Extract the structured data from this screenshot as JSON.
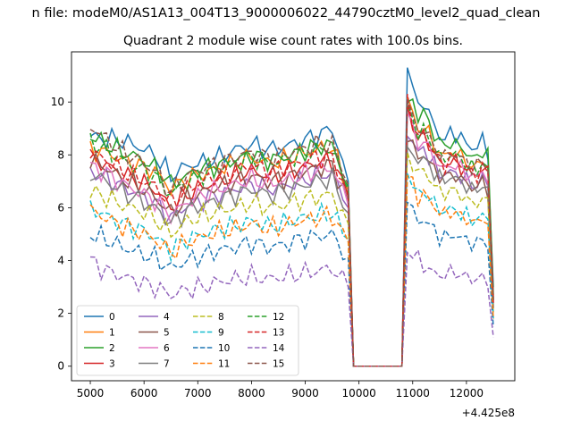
{
  "chart_data": {
    "type": "line",
    "suptitle": "n file: modeM0/AS1A13_004T13_9000006022_44790cztM0_level2_quad_clean",
    "title": "Quadrant 2 module wise count rates with 100.0s bins.",
    "xlabel": "",
    "ylabel": "",
    "x_offset_label": "+4.425e8",
    "xlim": [
      4650,
      12900
    ],
    "ylim": [
      -0.55,
      11.9
    ],
    "xticks": [
      5000,
      6000,
      7000,
      8000,
      9000,
      10000,
      11000,
      12000
    ],
    "yticks": [
      0,
      2,
      4,
      6,
      8,
      10
    ],
    "x_start": 5000,
    "x_step": 100,
    "x_end": 12500,
    "gap": {
      "last_high": 9800,
      "first_zero": 9900,
      "last_zero": 10800
    },
    "legend": {
      "placement": "lower-left",
      "columns": 4
    },
    "series": [
      {
        "name": "0",
        "color": "#1f77b4",
        "dash": "solid",
        "pre": [
          8.7,
          8.6,
          8.55,
          8.3,
          8.0,
          7.2,
          7.6,
          7.7,
          7.9,
          8.2,
          8.4,
          8.2,
          8.3,
          8.5,
          8.7,
          9.0,
          7.0
        ],
        "post": [
          11.3,
          10.5,
          9.7,
          10.1,
          9.4,
          9.0,
          8.5,
          8.7,
          8.9,
          8.7,
          8.5,
          8.3,
          8.2,
          8.6,
          8.5,
          3.0
        ]
      },
      {
        "name": "1",
        "color": "#ff7f0e",
        "dash": "solid",
        "pre": [
          8.2,
          8.1,
          7.8,
          7.6,
          7.4,
          6.7,
          7.1,
          7.3,
          7.5,
          7.7,
          7.9,
          7.7,
          7.8,
          8.0,
          8.2,
          8.3,
          6.7
        ],
        "post": [
          10.2,
          9.5,
          8.8,
          9.2,
          8.6,
          8.3,
          7.9,
          8.0,
          8.2,
          8.0,
          7.8,
          7.6,
          7.5,
          7.8,
          7.9,
          2.6
        ]
      },
      {
        "name": "2",
        "color": "#2ca02c",
        "dash": "solid",
        "pre": [
          8.7,
          8.4,
          8.1,
          7.9,
          7.5,
          6.9,
          7.2,
          7.5,
          7.6,
          7.8,
          8.0,
          7.8,
          7.9,
          8.1,
          8.3,
          8.4,
          6.8
        ],
        "post": [
          10.0,
          10.2,
          9.2,
          9.8,
          9.0,
          8.7,
          8.3,
          8.4,
          8.5,
          8.3,
          8.2,
          7.9,
          7.8,
          8.2,
          8.3,
          2.7
        ]
      },
      {
        "name": "3",
        "color": "#d62728",
        "dash": "solid",
        "pre": [
          7.9,
          7.6,
          7.3,
          7.0,
          6.7,
          6.0,
          6.5,
          6.8,
          7.0,
          7.2,
          7.4,
          7.2,
          7.3,
          7.5,
          7.7,
          7.8,
          6.4
        ],
        "post": [
          9.9,
          9.1,
          8.5,
          8.8,
          8.3,
          7.9,
          7.6,
          7.7,
          7.8,
          7.6,
          7.5,
          7.3,
          7.2,
          7.5,
          7.6,
          2.5
        ]
      },
      {
        "name": "4",
        "color": "#9467bd",
        "dash": "solid",
        "pre": [
          7.4,
          7.1,
          6.8,
          6.5,
          6.2,
          5.6,
          6.1,
          6.3,
          6.5,
          6.7,
          6.9,
          6.7,
          6.8,
          7.0,
          7.2,
          7.3,
          6.0
        ],
        "post": [
          8.7,
          8.5,
          8.0,
          8.3,
          7.8,
          7.5,
          7.2,
          7.3,
          7.4,
          7.2,
          7.1,
          6.9,
          6.8,
          7.1,
          7.2,
          2.3
        ]
      },
      {
        "name": "5",
        "color": "#8c564b",
        "dash": "solid",
        "pre": [
          7.8,
          7.5,
          7.1,
          6.8,
          6.4,
          5.8,
          6.3,
          6.6,
          6.8,
          7.0,
          7.2,
          7.0,
          7.1,
          7.3,
          7.5,
          7.6,
          6.2
        ],
        "post": [
          8.5,
          8.3,
          7.8,
          8.1,
          7.6,
          7.4,
          7.1,
          7.2,
          7.3,
          7.1,
          7.0,
          6.8,
          6.7,
          7.0,
          7.0,
          2.2
        ]
      },
      {
        "name": "6",
        "color": "#e377c2",
        "dash": "solid",
        "pre": [
          7.6,
          7.3,
          6.9,
          6.6,
          6.3,
          5.7,
          6.2,
          6.5,
          6.7,
          6.9,
          7.1,
          6.9,
          7.0,
          7.2,
          7.4,
          7.5,
          6.1
        ],
        "post": [
          9.6,
          8.9,
          8.3,
          8.6,
          8.1,
          7.8,
          7.4,
          7.5,
          7.7,
          7.5,
          7.4,
          7.2,
          7.1,
          7.4,
          7.4,
          2.4
        ]
      },
      {
        "name": "7",
        "color": "#7f7f7f",
        "dash": "solid",
        "pre": [
          7.3,
          7.0,
          6.6,
          6.3,
          6.0,
          5.4,
          5.9,
          6.1,
          6.3,
          6.5,
          6.7,
          6.5,
          6.6,
          6.8,
          7.0,
          7.1,
          5.8
        ],
        "post": [
          8.3,
          8.1,
          7.7,
          7.9,
          7.5,
          7.3,
          7.0,
          7.1,
          7.2,
          7.0,
          6.9,
          6.7,
          6.6,
          6.9,
          6.9,
          2.2
        ]
      },
      {
        "name": "8",
        "color": "#bcbd22",
        "dash": "dash",
        "pre": [
          6.6,
          6.4,
          6.1,
          5.9,
          5.6,
          5.0,
          5.5,
          5.7,
          5.9,
          6.0,
          6.2,
          6.0,
          6.1,
          6.3,
          6.4,
          6.5,
          5.4
        ],
        "post": [
          8.1,
          7.7,
          7.2,
          7.5,
          7.0,
          6.8,
          6.5,
          6.6,
          6.7,
          6.5,
          6.4,
          6.2,
          6.1,
          6.4,
          6.4,
          2.0
        ]
      },
      {
        "name": "9",
        "color": "#17becf",
        "dash": "dash",
        "pre": [
          6.0,
          5.7,
          5.4,
          5.2,
          4.9,
          4.4,
          4.8,
          5.0,
          5.2,
          5.3,
          5.5,
          5.3,
          5.4,
          5.6,
          5.7,
          5.8,
          4.8
        ],
        "post": [
          7.3,
          6.9,
          6.4,
          6.7,
          6.3,
          6.1,
          5.8,
          5.9,
          6.0,
          5.8,
          5.7,
          5.6,
          5.5,
          5.7,
          5.8,
          1.8
        ]
      },
      {
        "name": "10",
        "color": "#1f77b4",
        "dash": "dash",
        "pre": [
          5.0,
          4.8,
          4.5,
          4.3,
          4.1,
          3.7,
          4.0,
          4.2,
          4.4,
          4.5,
          4.7,
          4.5,
          4.6,
          4.8,
          4.9,
          5.0,
          4.1
        ],
        "post": [
          6.2,
          5.8,
          5.4,
          5.6,
          5.3,
          5.1,
          4.8,
          4.9,
          5.0,
          4.9,
          4.8,
          4.7,
          4.6,
          4.8,
          4.8,
          1.5
        ]
      },
      {
        "name": "11",
        "color": "#ff7f0e",
        "dash": "dash",
        "pre": [
          5.9,
          5.6,
          5.3,
          5.1,
          4.8,
          4.3,
          4.7,
          4.9,
          5.1,
          5.2,
          5.4,
          5.2,
          5.3,
          5.5,
          5.6,
          5.7,
          4.7
        ],
        "post": [
          7.2,
          6.8,
          6.3,
          6.6,
          6.2,
          6.0,
          5.7,
          5.8,
          5.9,
          5.7,
          5.6,
          5.5,
          5.4,
          5.6,
          5.7,
          1.8
        ]
      },
      {
        "name": "12",
        "color": "#2ca02c",
        "dash": "dash",
        "pre": [
          8.5,
          8.2,
          7.8,
          7.5,
          7.2,
          6.5,
          7.0,
          7.3,
          7.5,
          7.7,
          7.9,
          7.7,
          7.8,
          8.0,
          8.2,
          8.2,
          6.7
        ],
        "post": [
          10.0,
          9.3,
          8.7,
          9.0,
          8.5,
          8.1,
          7.8,
          7.9,
          8.1,
          7.9,
          7.7,
          7.5,
          7.4,
          7.7,
          7.8,
          2.5
        ]
      },
      {
        "name": "13",
        "color": "#d62728",
        "dash": "dash",
        "pre": [
          8.1,
          7.8,
          7.4,
          7.1,
          6.8,
          6.2,
          6.7,
          7.0,
          7.2,
          7.4,
          7.6,
          7.4,
          7.5,
          7.7,
          7.9,
          7.9,
          6.5
        ],
        "post": [
          10.3,
          9.2,
          8.5,
          8.9,
          8.3,
          8.0,
          7.6,
          7.7,
          7.9,
          7.7,
          7.5,
          7.3,
          7.2,
          7.5,
          7.6,
          2.4
        ]
      },
      {
        "name": "14",
        "color": "#9467bd",
        "dash": "dash",
        "pre": [
          4.0,
          3.6,
          3.4,
          3.2,
          3.0,
          2.7,
          2.9,
          3.0,
          3.2,
          3.3,
          3.4,
          3.3,
          3.4,
          3.5,
          3.6,
          3.7,
          3.0
        ],
        "post": [
          4.3,
          4.3,
          4.0,
          3.8,
          3.6,
          3.5,
          3.4,
          3.5,
          3.6,
          3.5,
          3.4,
          3.3,
          3.3,
          3.4,
          3.2,
          1.1
        ]
      },
      {
        "name": "15",
        "color": "#8c564b",
        "dash": "dash",
        "pre": [
          9.1,
          8.6,
          8.1,
          7.8,
          7.4,
          6.6,
          7.2,
          7.5,
          7.7,
          7.9,
          8.1,
          7.9,
          8.0,
          8.2,
          8.4,
          8.4,
          6.9
        ],
        "post": [
          10.1,
          9.4,
          8.7,
          9.1,
          8.5,
          8.2,
          7.9,
          8.0,
          8.1,
          7.9,
          7.8,
          7.6,
          7.5,
          7.8,
          7.8,
          2.5
        ]
      }
    ]
  }
}
